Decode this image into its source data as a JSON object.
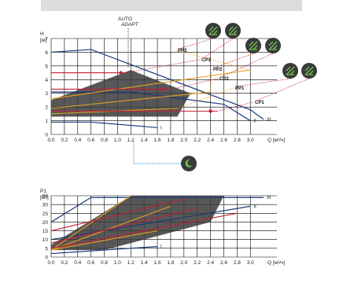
{
  "chart_data": [
    {
      "type": "line",
      "title": "",
      "xlabel": "Q [м³/ч]",
      "ylabel": "H [м]",
      "xlim": [
        0,
        3.4
      ],
      "ylim": [
        0,
        7
      ],
      "xticks": [
        "0.0",
        "0.2",
        "0.4",
        "0.6",
        "0.8",
        "1.0",
        "1.2",
        "1.4",
        "1.6",
        "1.8",
        "2.0",
        "2.2",
        "2.4",
        "2.6",
        "2.8",
        "3.0"
      ],
      "yticks": [
        "0",
        "1",
        "2",
        "3",
        "4",
        "5",
        "6",
        "7"
      ],
      "grid": true,
      "annotations": {
        "auto": "AUTO",
        "adapt": "ADAPT"
      },
      "series": [
        {
          "name": "III",
          "x": [
            0,
            0.6,
            3.0,
            3.2
          ],
          "y": [
            6.0,
            6.2,
            1.8,
            1.1
          ]
        },
        {
          "name": "II",
          "x": [
            0,
            1.2,
            2.6,
            3.0
          ],
          "y": [
            3.1,
            3.1,
            2.2,
            1.0
          ]
        },
        {
          "name": "I",
          "x": [
            0,
            0.6,
            1.6
          ],
          "y": [
            0.9,
            0.9,
            0.5
          ]
        },
        {
          "name": "PP3",
          "x": [
            0,
            3.0
          ],
          "y": [
            2.6,
            4.7
          ]
        },
        {
          "name": "PP2",
          "x": [
            0,
            2.4
          ],
          "y": [
            1.9,
            3.1
          ]
        },
        {
          "name": "PP1",
          "x": [
            0,
            1.9
          ],
          "y": [
            1.5,
            1.9
          ]
        },
        {
          "name": "CP3",
          "x": [
            0,
            1.1
          ],
          "y": [
            4.5,
            4.5
          ]
        },
        {
          "name": "CP2",
          "x": [
            0,
            1.8
          ],
          "y": [
            3.3,
            3.3
          ]
        },
        {
          "name": "CP1",
          "x": [
            0,
            2.5
          ],
          "y": [
            1.7,
            1.7
          ]
        }
      ],
      "region": {
        "x": [
          0,
          0,
          1.2,
          2.1,
          1.9,
          0.6
        ],
        "y": [
          1.3,
          2.5,
          4.7,
          3.0,
          1.3,
          1.3
        ]
      },
      "points": [
        {
          "name": "CP3",
          "x": 1.05,
          "y": 4.5
        },
        {
          "name": "CP2",
          "x": 1.65,
          "y": 3.3
        },
        {
          "name": "CP1",
          "x": 2.4,
          "y": 1.7
        }
      ]
    },
    {
      "type": "line",
      "title": "",
      "xlabel": "Q [м³/ч]",
      "ylabel": "P1 [Вт]",
      "xlim": [
        0,
        3.4
      ],
      "ylim": [
        0,
        35
      ],
      "xticks": [
        "0.0",
        "0.2",
        "0.4",
        "0.6",
        "0.8",
        "1.0",
        "1.2",
        "1.4",
        "1.6",
        "1.8",
        "2.0",
        "2.2",
        "2.4",
        "2.6",
        "2.8",
        "3.0"
      ],
      "yticks": [
        "0",
        "5",
        "10",
        "15",
        "20",
        "25",
        "30",
        "35"
      ],
      "grid": true,
      "series": [
        {
          "name": "III",
          "x": [
            0,
            0.6,
            3.2
          ],
          "y": [
            20,
            34,
            34
          ]
        },
        {
          "name": "II",
          "x": [
            0,
            3.0
          ],
          "y": [
            10,
            29
          ]
        },
        {
          "name": "I",
          "x": [
            0,
            1.6
          ],
          "y": [
            2,
            6
          ]
        },
        {
          "name": "PP3",
          "x": [
            0,
            1.2
          ],
          "y": [
            4,
            35
          ]
        },
        {
          "name": "PP2",
          "x": [
            0,
            1.8
          ],
          "y": [
            4,
            29
          ]
        },
        {
          "name": "PP1",
          "x": [
            0,
            1.6
          ],
          "y": [
            4,
            15
          ]
        },
        {
          "name": "CP3",
          "x": [
            0,
            2.0
          ],
          "y": [
            15,
            33
          ]
        },
        {
          "name": "CP2",
          "x": [
            0,
            2.2
          ],
          "y": [
            8,
            28
          ]
        },
        {
          "name": "CP1",
          "x": [
            0,
            2.8
          ],
          "y": [
            5,
            25
          ]
        }
      ],
      "region": {
        "x": [
          0,
          0,
          1.2,
          2.6,
          2.4,
          0.8
        ],
        "y": [
          4,
          7,
          35,
          35,
          20,
          4
        ]
      }
    }
  ],
  "icons": {
    "mode_icons": [
      "curve-mode-icon",
      "curve-mode-icon",
      "curve-mode-icon",
      "curve-mode-icon",
      "curve-mode-icon",
      "curve-mode-icon"
    ],
    "night_mode": "night-mode-icon"
  },
  "colors": {
    "region": "#3a3a3a",
    "pp": "#e8a020",
    "cp": "#c0203a",
    "fixed": "#1a3a7a",
    "green": "#6cc24a",
    "icon_bg": "#3a3a3a"
  }
}
